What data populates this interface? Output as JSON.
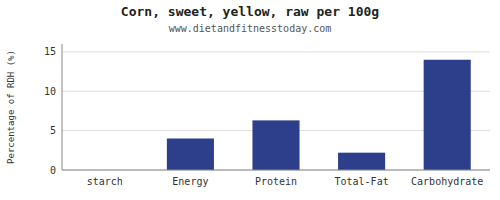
{
  "chart_data": {
    "type": "bar",
    "title": "Corn, sweet, yellow, raw per 100g",
    "subtitle": "www.dietandfitnesstoday.com",
    "ylabel": "Percentage of RDH (%)",
    "categories": [
      "starch",
      "Energy",
      "Protein",
      "Total-Fat",
      "Carbohydrate"
    ],
    "values": [
      0,
      4.0,
      6.3,
      2.2,
      14.0
    ],
    "color": "#2d3f8a",
    "ylim": [
      0,
      16
    ],
    "yticks": [
      0,
      5,
      10,
      15
    ],
    "grid": true
  }
}
